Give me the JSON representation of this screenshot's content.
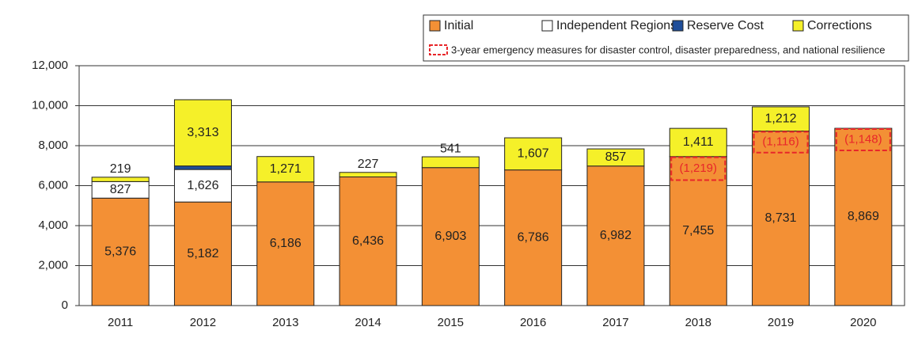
{
  "chart_data": {
    "type": "stacked_bar",
    "categories": [
      "2011",
      "2012",
      "2013",
      "2014",
      "2015",
      "2016",
      "2017",
      "2018",
      "2019",
      "2020"
    ],
    "series": [
      {
        "name": "Initial",
        "color": "#f39035",
        "values": [
          5376,
          5182,
          6186,
          6436,
          6903,
          6786,
          6982,
          7455,
          8731,
          8869
        ],
        "value_labels": [
          "5,376",
          "5,182",
          "6,186",
          "6,436",
          "6,903",
          "6,786",
          "6,982",
          "7,455",
          "8,731",
          "8,869"
        ]
      },
      {
        "name": "Independent Regions",
        "color": "#ffffff",
        "values": [
          827,
          1626,
          null,
          null,
          null,
          null,
          null,
          null,
          null,
          null
        ],
        "value_labels": [
          "827",
          "1,626",
          null,
          null,
          null,
          null,
          null,
          null,
          null,
          null
        ]
      },
      {
        "name": "Reserve Cost",
        "color": "#1f4e9a",
        "values": [
          null,
          177,
          null,
          null,
          null,
          null,
          null,
          null,
          null,
          null
        ],
        "value_labels": [
          null,
          "177",
          null,
          null,
          null,
          null,
          null,
          null,
          null,
          null
        ]
      },
      {
        "name": "Corrections",
        "color": "#f5f029",
        "values": [
          219,
          3313,
          1271,
          227,
          541,
          1607,
          857,
          1411,
          1212,
          null
        ],
        "value_labels": [
          "219",
          "3,313",
          "1,271",
          "227",
          "541",
          "1,607",
          "857",
          "1,411",
          "1,212",
          null
        ]
      }
    ],
    "emergency": {
      "name": "3-year emergency measures for disaster control, disaster preparedness, and national resilience",
      "color": "#e8262a",
      "values": [
        null,
        null,
        null,
        null,
        null,
        null,
        null,
        1219,
        1116,
        1148
      ],
      "value_labels": [
        null,
        null,
        null,
        null,
        null,
        null,
        null,
        "(1,219)",
        "(1,116)",
        "(1,148)"
      ]
    },
    "ylim": [
      0,
      12000
    ],
    "yticks": [
      0,
      {
        "value": 2000,
        "label": "2,000"
      },
      {
        "value": 4000,
        "label": "4,000"
      },
      {
        "value": 6000,
        "label": "6,000"
      },
      {
        "value": 8000,
        "label": "8,000"
      },
      {
        "value": 10000,
        "label": "10,000"
      },
      {
        "value": 12000,
        "label": "12,000"
      }
    ],
    "grid": true
  }
}
